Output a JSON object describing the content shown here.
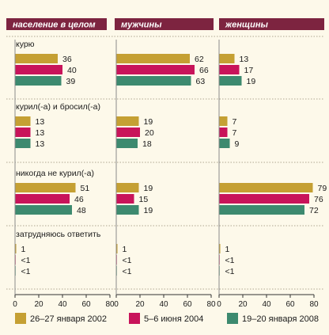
{
  "colors": {
    "background": "#fdf9ea",
    "header": "#7d2440",
    "series": [
      "#c5a033",
      "#c8145a",
      "#3d8a6f"
    ]
  },
  "chart_data": {
    "type": "bar",
    "orientation": "horizontal",
    "panels": [
      "население в целом",
      "мужчины",
      "женщины"
    ],
    "categories": [
      "курю",
      "курил(-а) и бросил(-а)",
      "никогда не курил(-а)",
      "затрудняюсь ответить"
    ],
    "series": [
      {
        "name": "26–27 января 2002",
        "values": [
          [
            36,
            62,
            13
          ],
          [
            13,
            19,
            7
          ],
          [
            51,
            19,
            79
          ],
          [
            1,
            1,
            1
          ]
        ],
        "labels": [
          [
            "36",
            "62",
            "13"
          ],
          [
            "13",
            "19",
            "7"
          ],
          [
            "51",
            "19",
            "79"
          ],
          [
            "1",
            "1",
            "1"
          ]
        ]
      },
      {
        "name": "5–6 июня 2004",
        "values": [
          [
            40,
            66,
            17
          ],
          [
            13,
            20,
            7
          ],
          [
            46,
            15,
            76
          ],
          [
            0.5,
            0.5,
            0.5
          ]
        ],
        "labels": [
          [
            "40",
            "66",
            "17"
          ],
          [
            "13",
            "20",
            "7"
          ],
          [
            "46",
            "15",
            "76"
          ],
          [
            "<1",
            "<1",
            "<1"
          ]
        ]
      },
      {
        "name": "19–20 января 2008",
        "values": [
          [
            39,
            63,
            19
          ],
          [
            13,
            18,
            9
          ],
          [
            48,
            19,
            72
          ],
          [
            0.5,
            0.5,
            0.5
          ]
        ],
        "labels": [
          [
            "39",
            "63",
            "19"
          ],
          [
            "13",
            "18",
            "9"
          ],
          [
            "48",
            "19",
            "72"
          ],
          [
            "<1",
            "<1",
            "<1"
          ]
        ]
      }
    ],
    "xlim": [
      0,
      80
    ],
    "xticks": [
      "0",
      "20",
      "40",
      "60",
      "80"
    ],
    "legend_position": "bottom"
  }
}
